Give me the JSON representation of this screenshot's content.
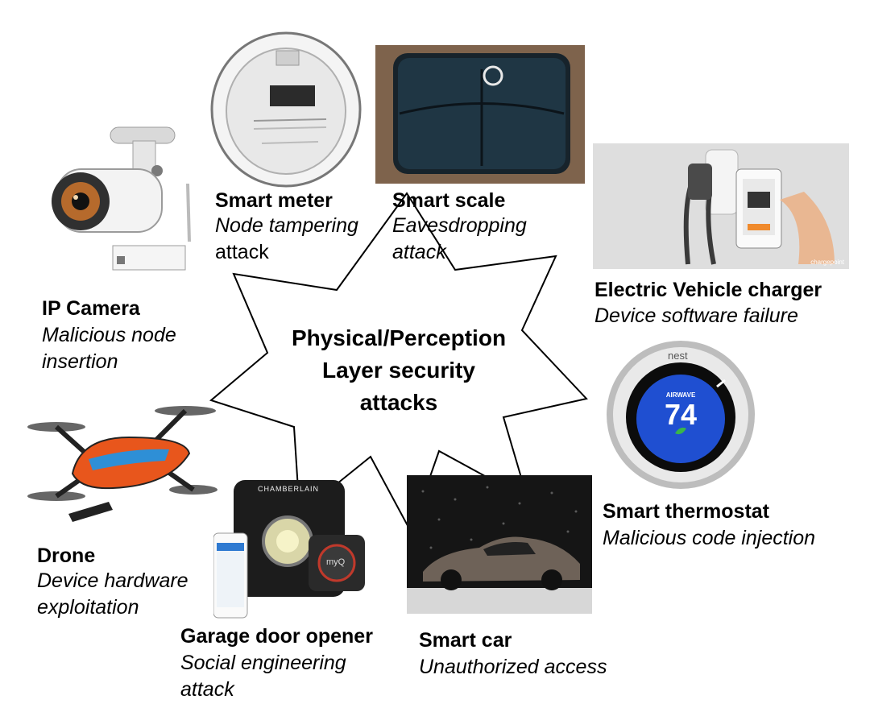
{
  "center": {
    "line1": "Physical/Perception",
    "line2": "Layer security",
    "line3": "attacks"
  },
  "devices": {
    "ip_camera": {
      "name": "IP Camera",
      "attack_l1": "Malicious node",
      "attack_l2": "insertion"
    },
    "smart_meter": {
      "name": "Smart meter",
      "attack_l1": "Node tampering",
      "attack_l2": "attack"
    },
    "smart_scale": {
      "name": "Smart scale",
      "attack_l1": "Eavesdropping",
      "attack_l2": "attack"
    },
    "ev_charger": {
      "name": "Electric Vehicle charger",
      "attack": "Device software failure",
      "watermark": "chargepoint"
    },
    "thermostat": {
      "name": "Smart thermostat",
      "attack": "Malicious code injection",
      "brand": "nest",
      "screen_label": "AIRWAVE",
      "temperature": "74"
    },
    "drone": {
      "name": "Drone",
      "attack_l1": "Device hardware",
      "attack_l2": "exploitation"
    },
    "garage": {
      "name": "Garage door opener",
      "attack_l1": "Social engineering",
      "attack_l2": "attack",
      "brand": "CHAMBERLAIN",
      "myq": "myQ"
    },
    "smart_car": {
      "name": "Smart car",
      "attack": "Unauthorized access"
    }
  },
  "colors": {
    "text": "#000000",
    "star_stroke": "#000000",
    "drone_orange": "#e8561c",
    "drone_blue": "#2e8fd6",
    "thermostat_blue": "#1f4fd1"
  }
}
